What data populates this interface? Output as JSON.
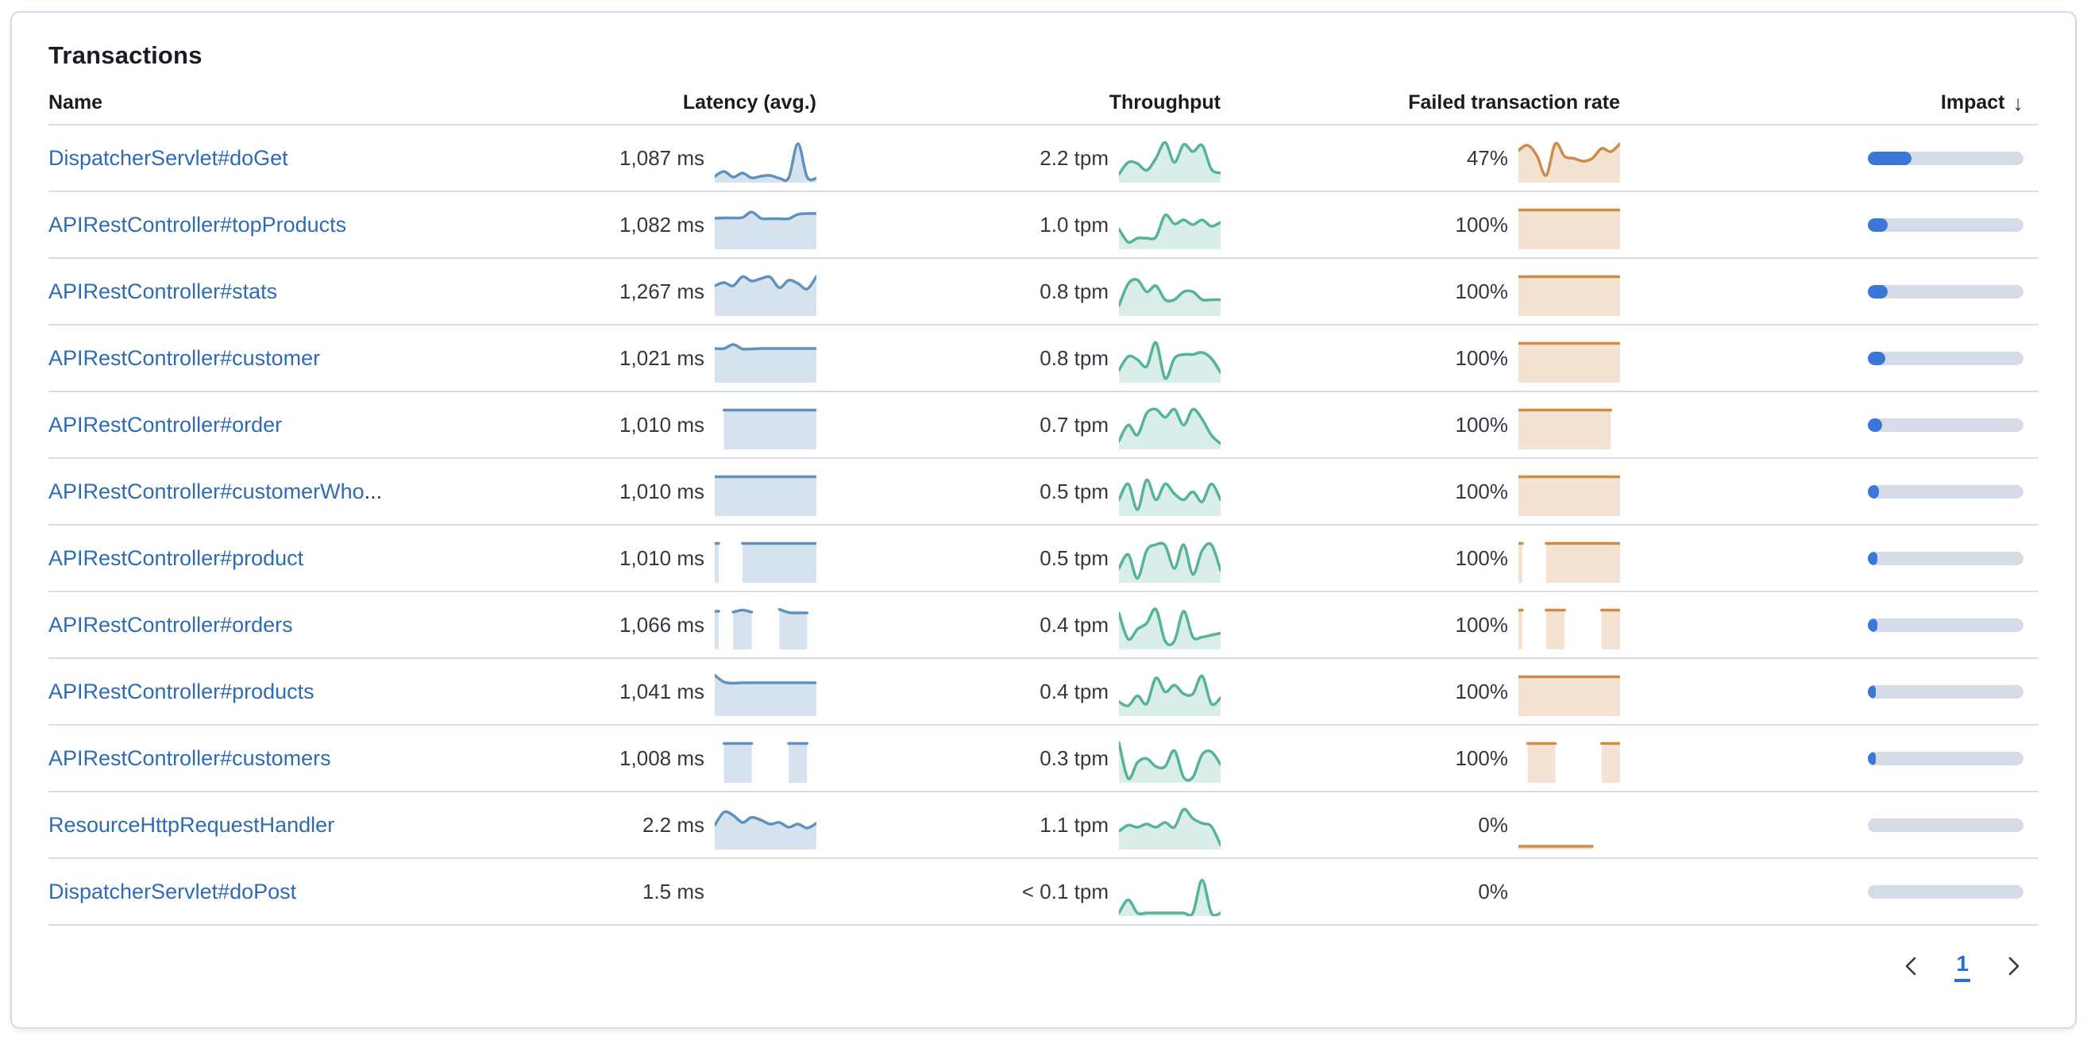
{
  "card": {
    "title": "Transactions"
  },
  "colors": {
    "link": "#2d6bb4",
    "value_text": "#343741",
    "heading_text": "#1a1c21",
    "divider": "#d9deea",
    "card_border": "#d3dae6",
    "latency_stroke": "#6092c0",
    "latency_fill": "rgba(96,146,192,0.26)",
    "throughput_stroke": "#54b399",
    "throughput_fill": "rgba(84,179,153,0.22)",
    "failed_stroke": "#d08c46",
    "failed_fill": "rgba(208,140,70,0.24)",
    "impact_fill": "#3b77d9",
    "impact_track": "#d5dce8",
    "active_page": "#2570d4"
  },
  "table": {
    "columns": {
      "name": "Name",
      "latency": "Latency (avg.)",
      "throughput": "Throughput",
      "failed": "Failed transaction rate",
      "impact": "Impact"
    },
    "sort_icon": "↓",
    "sorted_by": "Impact",
    "sort_direction": "descending",
    "rows": [
      {
        "name": "DispatcherServlet#doGet",
        "latency": "1,087 ms",
        "throughput": "2.2 tpm",
        "failed": "47%",
        "impact_pct": 28,
        "latency_spark": [
          0.1,
          0.22,
          0.08,
          0.18,
          0.06,
          0.1,
          0.12,
          0.05,
          0.06,
          0.92,
          0.08,
          0.05
        ],
        "throughput_spark": [
          0.15,
          0.45,
          0.42,
          0.25,
          0.55,
          0.95,
          0.45,
          0.9,
          0.72,
          0.88,
          0.28,
          0.18
        ],
        "failed_spark": [
          0.75,
          0.88,
          0.62,
          0.12,
          0.92,
          0.6,
          0.55,
          0.48,
          0.55,
          0.8,
          0.72,
          0.92
        ]
      },
      {
        "name": "APIRestController#topProducts",
        "latency": "1,082 ms",
        "throughput": "1.0 tpm",
        "failed": "100%",
        "impact_pct": 13,
        "latency_spark": [
          0.72,
          0.73,
          0.73,
          0.74,
          0.88,
          0.72,
          0.71,
          0.71,
          0.71,
          0.82,
          0.84,
          0.84
        ],
        "throughput_spark": [
          0.45,
          0.12,
          0.22,
          0.22,
          0.25,
          0.8,
          0.58,
          0.68,
          0.56,
          0.68,
          0.52,
          0.62
        ],
        "failed_spark": [
          0.93,
          0.93,
          0.93,
          0.93,
          0.93,
          0.93,
          0.93,
          0.93,
          0.93,
          0.93,
          0.93,
          0.93
        ]
      },
      {
        "name": "APIRestController#stats",
        "latency": "1,267 ms",
        "throughput": "0.8 tpm",
        "failed": "100%",
        "impact_pct": 13,
        "latency_spark": [
          0.7,
          0.78,
          0.7,
          0.93,
          0.82,
          0.88,
          0.92,
          0.65,
          0.84,
          0.76,
          0.62,
          0.93
        ],
        "throughput_spark": [
          0.2,
          0.75,
          0.85,
          0.55,
          0.7,
          0.35,
          0.35,
          0.55,
          0.55,
          0.35,
          0.35,
          0.35
        ],
        "failed_spark": [
          0.93,
          0.93,
          0.93,
          0.93,
          0.93,
          0.93,
          0.93,
          0.93,
          0.93,
          0.93,
          0.93,
          0.93
        ]
      },
      {
        "name": "APIRestController#customer",
        "latency": "1,021 ms",
        "throughput": "0.8 tpm",
        "failed": "100%",
        "impact_pct": 11,
        "latency_spark": [
          0.8,
          0.8,
          0.9,
          0.79,
          0.79,
          0.8,
          0.8,
          0.8,
          0.8,
          0.8,
          0.8,
          0.8
        ],
        "throughput_spark": [
          0.25,
          0.6,
          0.52,
          0.35,
          0.95,
          0.05,
          0.55,
          0.65,
          0.65,
          0.7,
          0.55,
          0.2
        ],
        "failed_spark": [
          0.93,
          0.93,
          0.93,
          0.93,
          0.93,
          0.93,
          0.93,
          0.93,
          0.93,
          0.93,
          0.93,
          0.93
        ]
      },
      {
        "name": "APIRestController#order",
        "latency": "1,010 ms",
        "throughput": "0.7 tpm",
        "failed": "100%",
        "impact_pct": 9,
        "latency_spark": [
          null,
          0.93,
          0.93,
          0.93,
          0.93,
          0.93,
          0.93,
          0.93,
          0.93,
          0.93,
          0.93,
          0.93
        ],
        "throughput_spark": [
          0.15,
          0.55,
          0.3,
          0.85,
          0.95,
          0.75,
          0.95,
          0.55,
          0.95,
          0.7,
          0.3,
          0.08
        ],
        "failed_spark": [
          0.93,
          0.93,
          0.93,
          0.93,
          0.93,
          0.93,
          0.93,
          0.93,
          0.93,
          0.93,
          0.93,
          null
        ]
      },
      {
        "name": "APIRestController#customerWho",
        "ellipsis": "...",
        "latency": "1,010 ms",
        "throughput": "0.5 tpm",
        "failed": "100%",
        "impact_pct": 7,
        "latency_spark": [
          0.93,
          0.93,
          0.93,
          0.93,
          0.93,
          0.93,
          0.93,
          0.93,
          0.93,
          0.93,
          0.93,
          0.93
        ],
        "throughput_spark": [
          0.35,
          0.75,
          0.1,
          0.85,
          0.35,
          0.75,
          0.5,
          0.35,
          0.55,
          0.3,
          0.75,
          0.35
        ],
        "failed_spark": [
          0.93,
          0.93,
          0.93,
          0.93,
          0.93,
          0.93,
          0.93,
          0.93,
          0.93,
          0.93,
          0.93,
          0.93
        ]
      },
      {
        "name": "APIRestController#product",
        "latency": "1,010 ms",
        "throughput": "0.5 tpm",
        "failed": "100%",
        "impact_pct": 6,
        "latency_spark": [
          0.93,
          null,
          null,
          0.93,
          0.93,
          0.93,
          0.93,
          0.93,
          0.93,
          0.93,
          0.93,
          0.93
        ],
        "throughput_spark": [
          0.3,
          0.65,
          0.05,
          0.75,
          0.9,
          0.88,
          0.3,
          0.9,
          0.15,
          0.75,
          0.9,
          0.25
        ],
        "failed_spark": [
          0.93,
          null,
          null,
          0.93,
          0.93,
          0.93,
          0.93,
          0.93,
          0.93,
          0.93,
          0.93,
          0.93
        ]
      },
      {
        "name": "APIRestController#orders",
        "latency": "1,066 ms",
        "throughput": "0.4 tpm",
        "failed": "100%",
        "impact_pct": 6,
        "latency_spark": [
          0.9,
          null,
          0.88,
          0.93,
          0.88,
          null,
          null,
          0.95,
          0.87,
          0.86,
          0.86,
          null
        ],
        "throughput_spark": [
          0.85,
          0.2,
          0.45,
          0.6,
          0.95,
          0.15,
          0.15,
          0.9,
          0.25,
          0.25,
          0.3,
          0.35
        ],
        "failed_spark": [
          0.93,
          null,
          null,
          0.93,
          0.93,
          0.93,
          null,
          null,
          null,
          0.93,
          0.93,
          0.93
        ]
      },
      {
        "name": "APIRestController#products",
        "latency": "1,041 ms",
        "throughput": "0.4 tpm",
        "failed": "100%",
        "impact_pct": 5,
        "latency_spark": [
          0.97,
          0.8,
          0.77,
          0.78,
          0.78,
          0.78,
          0.78,
          0.78,
          0.78,
          0.78,
          0.78,
          0.78
        ],
        "throughput_spark": [
          0.3,
          0.2,
          0.45,
          0.25,
          0.9,
          0.55,
          0.72,
          0.5,
          0.5,
          0.95,
          0.25,
          0.4
        ],
        "failed_spark": [
          0.93,
          0.93,
          0.93,
          0.93,
          0.93,
          0.93,
          0.93,
          0.93,
          0.93,
          0.93,
          0.93,
          0.93
        ]
      },
      {
        "name": "APIRestController#customers",
        "latency": "1,008 ms",
        "throughput": "0.3 tpm",
        "failed": "100%",
        "impact_pct": 5,
        "latency_spark": [
          null,
          0.93,
          0.93,
          0.93,
          0.93,
          null,
          null,
          null,
          0.93,
          0.93,
          0.93,
          null
        ],
        "throughput_spark": [
          0.95,
          0.05,
          0.45,
          0.55,
          0.35,
          0.35,
          0.75,
          0.08,
          0.08,
          0.65,
          0.72,
          0.4
        ],
        "failed_spark": [
          null,
          0.93,
          0.93,
          0.93,
          0.93,
          null,
          null,
          null,
          null,
          0.93,
          0.93,
          0.93
        ]
      },
      {
        "name": "ResourceHttpRequestHandler",
        "latency": "2.2 ms",
        "throughput": "1.1 tpm",
        "failed": "0%",
        "impact_pct": 0,
        "latency_spark": [
          0.55,
          0.88,
          0.8,
          0.62,
          0.75,
          0.68,
          0.58,
          0.62,
          0.5,
          0.58,
          0.48,
          0.6
        ],
        "throughput_spark": [
          0.4,
          0.55,
          0.5,
          0.58,
          0.5,
          0.62,
          0.5,
          0.95,
          0.72,
          0.6,
          0.52,
          0.05
        ],
        "failed_spark": [
          0.02,
          0.02,
          0.02,
          0.02,
          0.02,
          0.02,
          0.02,
          0.02,
          0.02,
          null,
          null,
          null
        ]
      },
      {
        "name": "DispatcherServlet#doPost",
        "latency": "1.5 ms",
        "throughput": "< 0.1 tpm",
        "failed": "0%",
        "impact_pct": 0,
        "latency_spark": null,
        "throughput_spark": [
          0.02,
          0.35,
          0.02,
          0.02,
          0.02,
          0.02,
          0.02,
          0.02,
          0.02,
          0.85,
          0.02,
          0.02
        ],
        "failed_spark": null
      }
    ]
  },
  "pagination": {
    "prev_icon": "chevron-left",
    "page": "1",
    "next_icon": "chevron-right"
  }
}
